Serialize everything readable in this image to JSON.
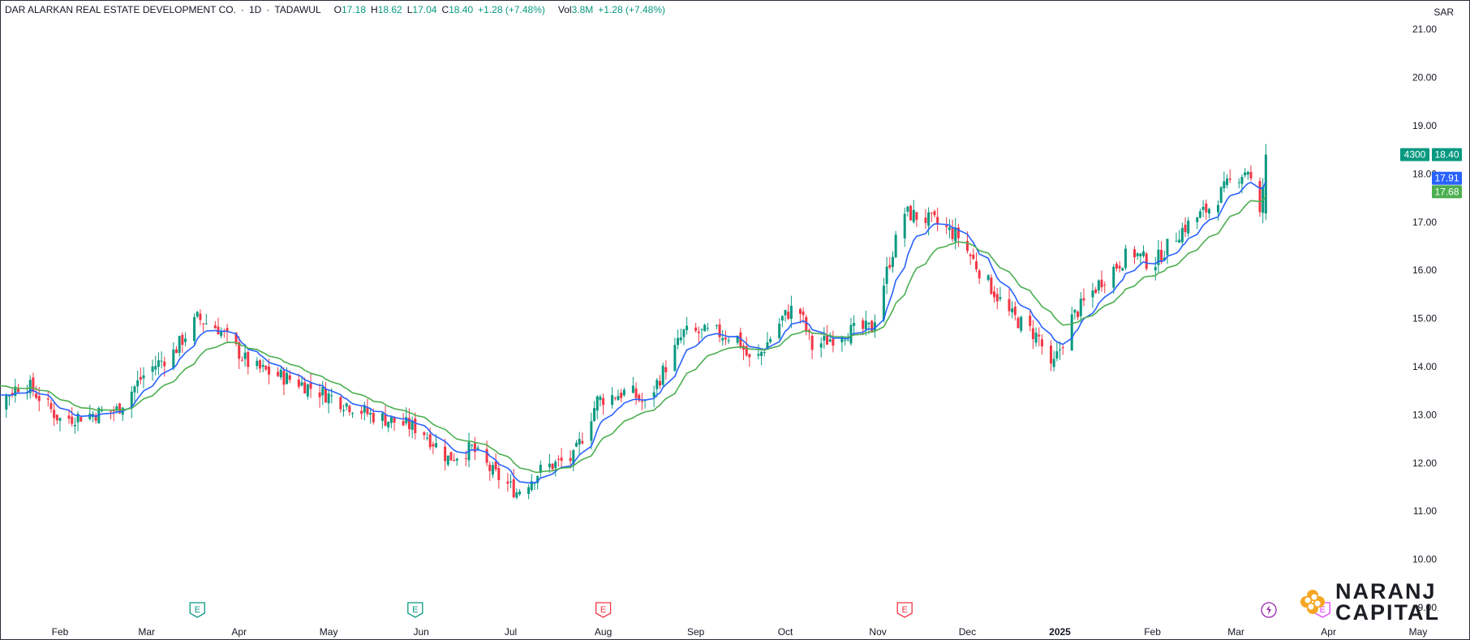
{
  "header": {
    "symbol": "DAR ALARKAN REAL ESTATE DEVELOPMENT CO.",
    "interval": "1D",
    "exchange": "TADAWUL",
    "open_label": "O",
    "open": "17.18",
    "high_label": "H",
    "high": "18.62",
    "low_label": "L",
    "low": "17.04",
    "close_label": "C",
    "close": "18.40",
    "change": "+1.28 (+7.48%)",
    "vol_label": "Vol",
    "volume": "3.8M",
    "vol_change": "+1.28 (+7.48%)"
  },
  "currency": "SAR",
  "price_tags": {
    "countdown": "4300",
    "last": "18.40",
    "ema_fast": "17.91",
    "ema_slow": "17.68"
  },
  "events": [
    {
      "type": "E",
      "date": "2024-03-18",
      "color": "#089981"
    },
    {
      "type": "E",
      "date": "2024-05-30",
      "color": "#089981"
    },
    {
      "type": "E",
      "date": "2024-08-01",
      "color": "#f23645"
    },
    {
      "type": "E",
      "date": "2024-11-10",
      "color": "#f23645"
    },
    {
      "type": "bolt",
      "date": "2025-03-12",
      "color": "#9c27b0"
    },
    {
      "type": "E",
      "date": "2025-03-30",
      "color": "#e040fb"
    }
  ],
  "logo": {
    "line1": "NARANJ",
    "line2": "CAPITAL"
  },
  "colors": {
    "up": "#089981",
    "down": "#f23645",
    "ema_fast": "#2962ff",
    "ema_slow": "#4caf50"
  },
  "chart_data": {
    "type": "candlestick",
    "title": "DAR ALARKAN REAL ESTATE DEVELOPMENT CO. · 1D · TADAWUL",
    "ylim": [
      8.6,
      21.3
    ],
    "yticks": [
      "9.00",
      "10.00",
      "11.00",
      "12.00",
      "13.00",
      "14.00",
      "15.00",
      "16.00",
      "17.00",
      "18.00",
      "19.00",
      "20.00",
      "21.00"
    ],
    "xlim": [
      "2024-01-01",
      "2025-05-05"
    ],
    "xticks": [
      {
        "label": "Feb",
        "date": "2024-02-01"
      },
      {
        "label": "Mar",
        "date": "2024-03-01"
      },
      {
        "label": "Apr",
        "date": "2024-04-01"
      },
      {
        "label": "May",
        "date": "2024-05-01"
      },
      {
        "label": "Jun",
        "date": "2024-06-01"
      },
      {
        "label": "Jul",
        "date": "2024-07-01"
      },
      {
        "label": "Aug",
        "date": "2024-08-01"
      },
      {
        "label": "Sep",
        "date": "2024-09-01"
      },
      {
        "label": "Oct",
        "date": "2024-10-01"
      },
      {
        "label": "Nov",
        "date": "2024-11-01"
      },
      {
        "label": "Dec",
        "date": "2024-12-01"
      },
      {
        "label": "2025",
        "date": "2025-01-01"
      },
      {
        "label": "Feb",
        "date": "2025-02-01"
      },
      {
        "label": "Mar",
        "date": "2025-03-01"
      },
      {
        "label": "Apr",
        "date": "2025-04-01"
      },
      {
        "label": "May",
        "date": "2025-05-01"
      }
    ],
    "price_path": [
      [
        "2024-01-01",
        13.9
      ],
      [
        "2024-01-10",
        13.2
      ],
      [
        "2024-01-20",
        13.7
      ],
      [
        "2024-02-01",
        12.9
      ],
      [
        "2024-02-10",
        13.0
      ],
      [
        "2024-02-20",
        13.1
      ],
      [
        "2024-03-01",
        13.9
      ],
      [
        "2024-03-10",
        14.3
      ],
      [
        "2024-03-18",
        15.0
      ],
      [
        "2024-03-25",
        14.8
      ],
      [
        "2024-04-05",
        14.0
      ],
      [
        "2024-04-20",
        13.7
      ],
      [
        "2024-05-01",
        13.4
      ],
      [
        "2024-05-15",
        13.0
      ],
      [
        "2024-06-01",
        12.7
      ],
      [
        "2024-06-10",
        12.1
      ],
      [
        "2024-06-18",
        12.3
      ],
      [
        "2024-06-25",
        11.8
      ],
      [
        "2024-07-03",
        11.4
      ],
      [
        "2024-07-12",
        11.9
      ],
      [
        "2024-07-22",
        12.1
      ],
      [
        "2024-07-30",
        13.3
      ],
      [
        "2024-08-10",
        13.5
      ],
      [
        "2024-08-15",
        13.2
      ],
      [
        "2024-08-28",
        14.7
      ],
      [
        "2024-09-08",
        14.7
      ],
      [
        "2024-09-15",
        14.6
      ],
      [
        "2024-09-20",
        14.0
      ],
      [
        "2024-09-30",
        15.0
      ],
      [
        "2024-10-05",
        15.3
      ],
      [
        "2024-10-10",
        14.4
      ],
      [
        "2024-10-20",
        14.7
      ],
      [
        "2024-10-30",
        14.8
      ],
      [
        "2024-11-05",
        16.2
      ],
      [
        "2024-11-10",
        17.2
      ],
      [
        "2024-11-20",
        17.0
      ],
      [
        "2024-11-28",
        16.7
      ],
      [
        "2024-12-05",
        16.0
      ],
      [
        "2024-12-15",
        15.1
      ],
      [
        "2024-12-25",
        14.6
      ],
      [
        "2024-12-29",
        13.9
      ],
      [
        "2025-01-05",
        15.0
      ],
      [
        "2025-01-15",
        15.8
      ],
      [
        "2025-01-25",
        16.4
      ],
      [
        "2025-02-01",
        16.1
      ],
      [
        "2025-02-10",
        16.8
      ],
      [
        "2025-02-20",
        17.3
      ],
      [
        "2025-02-28",
        17.9
      ],
      [
        "2025-03-05",
        18.1
      ],
      [
        "2025-03-09",
        17.1
      ],
      [
        "2025-03-11",
        18.4
      ]
    ],
    "series": [
      {
        "name": "",
        "type": "ema",
        "period": 9,
        "last": 17.91,
        "color": "#2962ff"
      },
      {
        "name": "",
        "type": "ema",
        "period": 20,
        "last": 17.68,
        "color": "#4caf50"
      }
    ],
    "last_close": 18.4
  }
}
